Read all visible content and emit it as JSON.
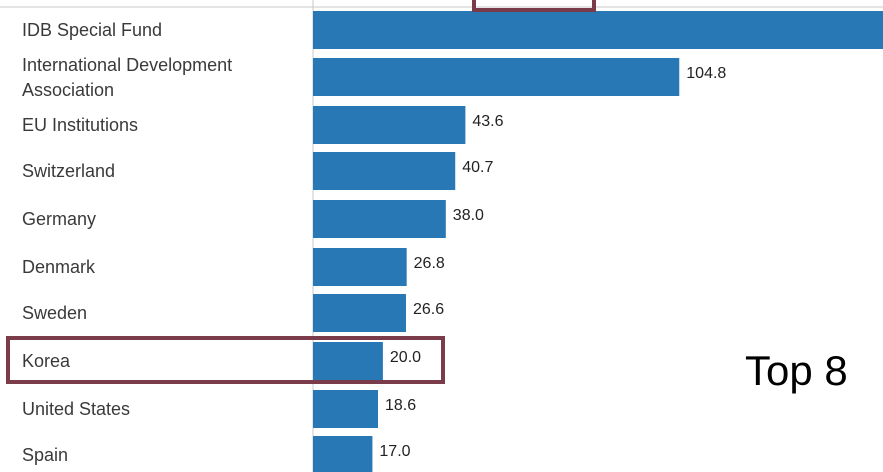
{
  "caption": "Top 8",
  "colors": {
    "bar": "#2778b4",
    "highlight": "#7a3b4b",
    "axis": "#c8c8c8"
  },
  "highlighted_category": "Korea",
  "chart_data": {
    "type": "bar",
    "orientation": "horizontal",
    "categories": [
      "IDB Special Fund",
      "International Development Association",
      "EU Institutions",
      "Switzerland",
      "Germany",
      "Denmark",
      "Sweden",
      "Korea",
      "United States",
      "Spain"
    ],
    "values": [
      178,
      104.8,
      43.6,
      40.7,
      38.0,
      26.8,
      26.6,
      20.0,
      18.6,
      17.0
    ],
    "value_labels": [
      "",
      "104.8",
      "43.6",
      "40.7",
      "38.0",
      "26.8",
      "26.6",
      "20.0",
      "18.6",
      "17.0"
    ],
    "xlim": [
      0,
      180
    ],
    "grid": false,
    "legend": "none"
  }
}
